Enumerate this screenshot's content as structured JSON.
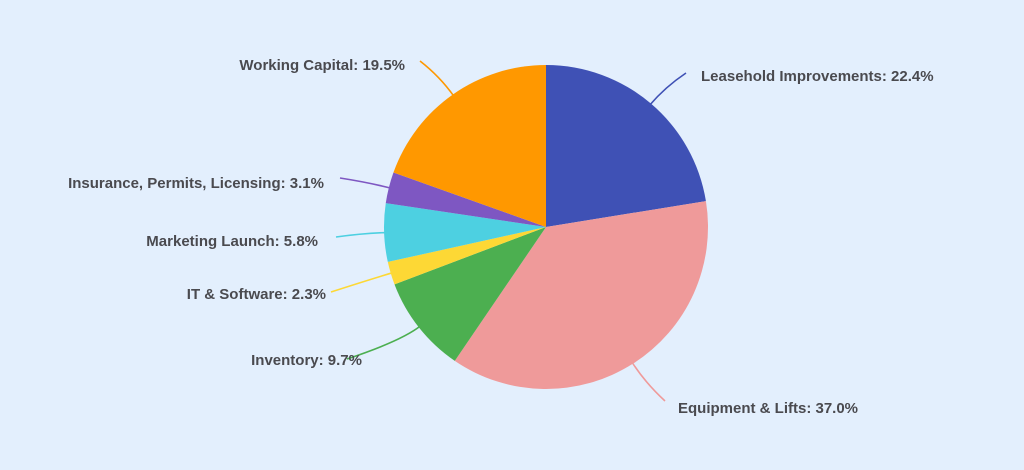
{
  "chart_data": {
    "type": "pie",
    "title": "",
    "start_angle_deg": 0,
    "direction": "clockwise",
    "background": "#e3effd",
    "label_format": "{name}: {value}%",
    "slices": [
      {
        "name": "Leasehold Improvements",
        "value": 22.4,
        "color": "#3f51b5",
        "label": "Leasehold Improvements: 22.4%"
      },
      {
        "name": "Equipment & Lifts",
        "value": 37.0,
        "color": "#ef9a9a",
        "label": "Equipment & Lifts: 37.0%"
      },
      {
        "name": "Inventory",
        "value": 9.7,
        "color": "#4caf50",
        "label": "Inventory: 9.7%"
      },
      {
        "name": "IT & Software",
        "value": 2.3,
        "color": "#fdd835",
        "label": "IT & Software: 2.3%"
      },
      {
        "name": "Marketing Launch",
        "value": 5.8,
        "color": "#4dd0e1",
        "label": "Marketing Launch: 5.8%"
      },
      {
        "name": "Insurance, Permits, Licensing",
        "value": 3.1,
        "color": "#7e57c2",
        "label": "Insurance, Permits, Licensing: 3.1%"
      },
      {
        "name": "Working Capital",
        "value": 19.5,
        "color": "#ff9800",
        "label": "Working Capital: 19.5%"
      }
    ],
    "categories": [
      "Leasehold Improvements",
      "Equipment & Lifts",
      "Inventory",
      "IT & Software",
      "Marketing Launch",
      "Insurance, Permits, Licensing",
      "Working Capital"
    ],
    "values": [
      22.4,
      37.0,
      9.7,
      2.3,
      5.8,
      3.1,
      19.5
    ],
    "legend": "none (outside labels with leader lines)"
  }
}
